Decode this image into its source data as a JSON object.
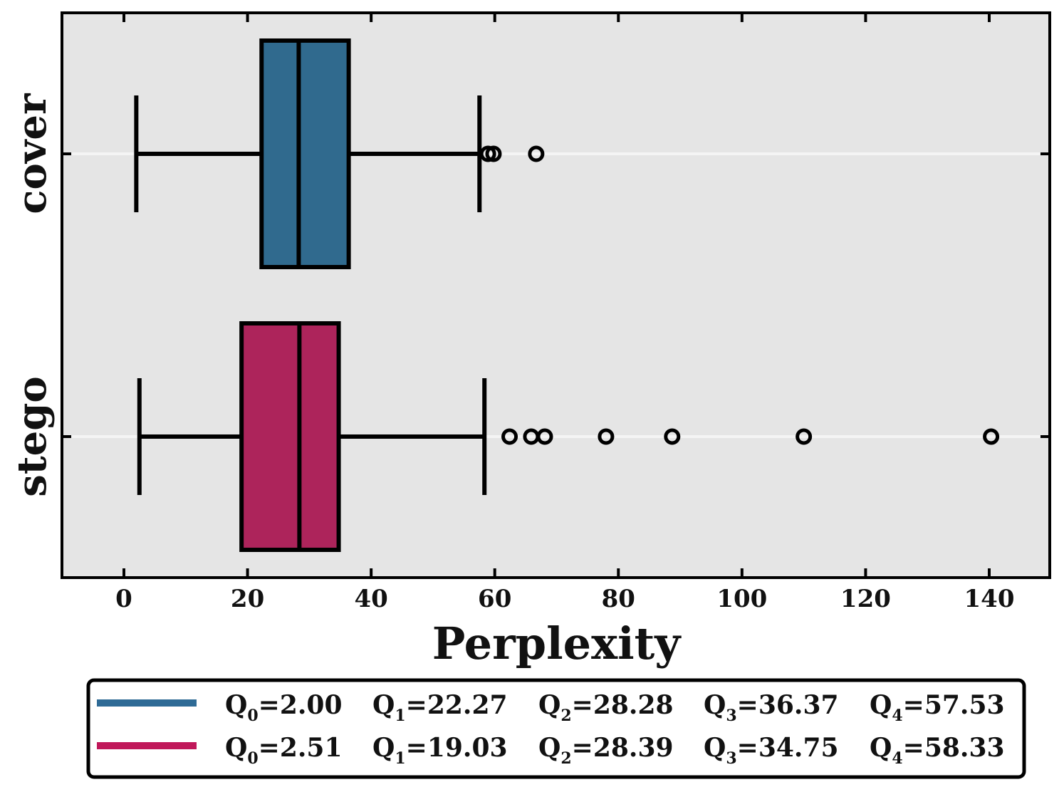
{
  "chart_data": {
    "type": "boxplot",
    "orientation": "horizontal",
    "xlabel": "Perplexity",
    "xlim": [
      -10,
      150
    ],
    "xticks": [
      0,
      20,
      40,
      60,
      80,
      100,
      120,
      140
    ],
    "xtick_labels": [
      "0",
      "20",
      "40",
      "60",
      "80",
      "100",
      "120",
      "140"
    ],
    "categories": [
      "cover",
      "stego"
    ],
    "series": [
      {
        "name": "cover",
        "color": "#306a8e",
        "legend_color": "#2f6b96",
        "whisker_low": 2.0,
        "q1": 22.27,
        "median": 28.28,
        "q3": 36.37,
        "whisker_high": 57.53,
        "outliers": [
          58.9,
          59.8,
          66.7
        ],
        "legend_entries": [
          {
            "sym": "Q",
            "sub": "0",
            "value": "=2.00"
          },
          {
            "sym": "Q",
            "sub": "1",
            "value": "=22.27"
          },
          {
            "sym": "Q",
            "sub": "2",
            "value": "=28.28"
          },
          {
            "sym": "Q",
            "sub": "3",
            "value": "=36.37"
          },
          {
            "sym": "Q",
            "sub": "4",
            "value": "=57.53"
          }
        ]
      },
      {
        "name": "stego",
        "color": "#ad245b",
        "legend_color": "#c0185a",
        "whisker_low": 2.51,
        "q1": 19.03,
        "median": 28.39,
        "q3": 34.75,
        "whisker_high": 58.33,
        "outliers": [
          62.4,
          65.9,
          68.1,
          78.0,
          88.7,
          110.0,
          140.3
        ],
        "legend_entries": [
          {
            "sym": "Q",
            "sub": "0",
            "value": "=2.51"
          },
          {
            "sym": "Q",
            "sub": "1",
            "value": "=19.03"
          },
          {
            "sym": "Q",
            "sub": "2",
            "value": "=28.39"
          },
          {
            "sym": "Q",
            "sub": "3",
            "value": "=34.75"
          },
          {
            "sym": "Q",
            "sub": "4",
            "value": "=58.33"
          }
        ]
      }
    ],
    "background_color": "#e5e5e5",
    "grid": "horizontal at category centers",
    "legend_position": "bottom-center"
  }
}
